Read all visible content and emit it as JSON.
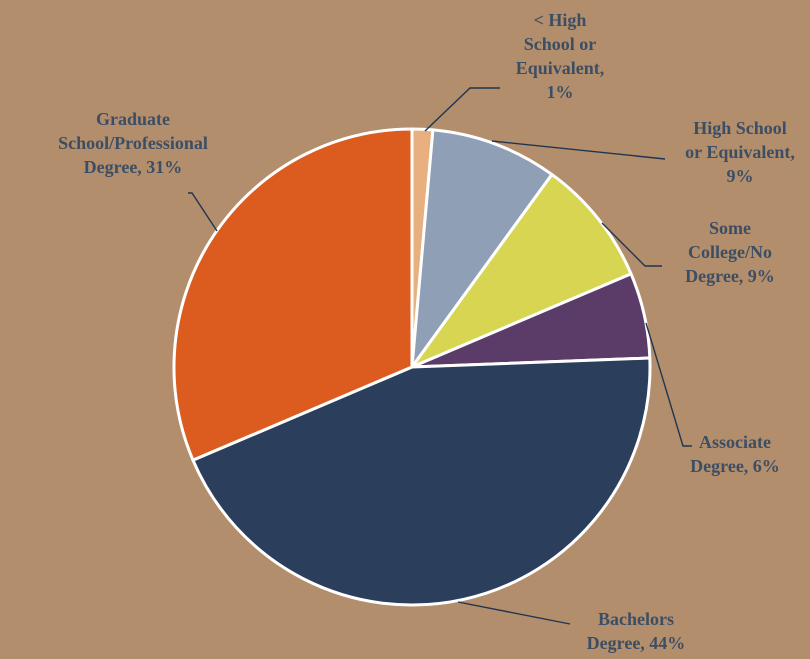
{
  "chart_data": {
    "type": "pie",
    "title": "",
    "start_angle_deg": 0,
    "direction": "clockwise",
    "slices": [
      {
        "label_lines": [
          "< High",
          "School or",
          "Equivalent,",
          "1%"
        ],
        "value": 1.4,
        "color": "#E8B07E"
      },
      {
        "label_lines": [
          "High School",
          "or Equivalent,",
          "9%"
        ],
        "value": 8.6,
        "color": "#8FA0B6"
      },
      {
        "label_lines": [
          "Some",
          "College/No",
          "Degree, 9%"
        ],
        "value": 8.6,
        "color": "#D7D551"
      },
      {
        "label_lines": [
          "Associate",
          "Degree, 6%"
        ],
        "value": 5.8,
        "color": "#5B3B68"
      },
      {
        "label_lines": [
          "Bachelors",
          "Degree, 44%"
        ],
        "value": 44.2,
        "color": "#2B3F5C"
      },
      {
        "label_lines": [
          "Graduate",
          "School/Professional",
          "Degree, 31%"
        ],
        "value": 31.4,
        "color": "#DC5C20"
      }
    ],
    "legend": "none",
    "background_color": "#B38E6D",
    "label_color": "#3C4E63"
  }
}
